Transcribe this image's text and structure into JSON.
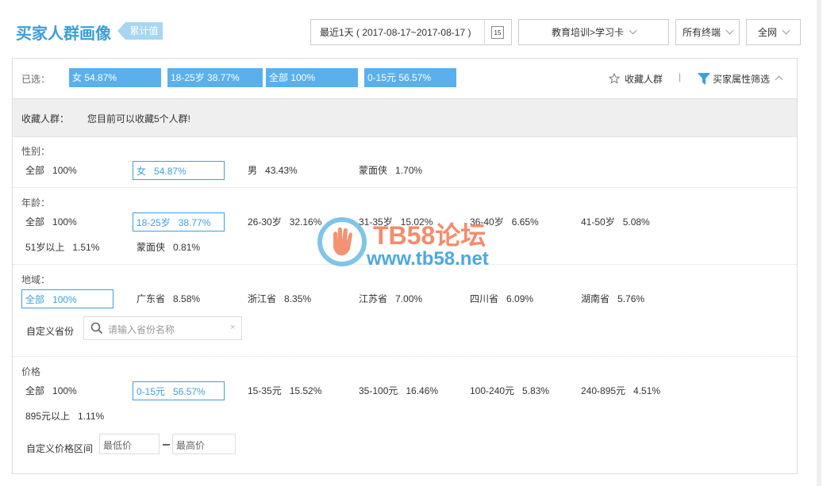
{
  "header": {
    "title": "买家人群画像",
    "badge": "累计值",
    "date_range": "最近1天 ( 2017-08-17~2017-08-17 )",
    "date_icon": "15",
    "category": "教育培训>学习卡",
    "terminal": "所有终端",
    "network": "全网"
  },
  "selected": {
    "label": "已选：",
    "tags": [
      "女 54.87%",
      "18-25岁 38.77%",
      "全部 100%",
      "0-15元 56.57%"
    ],
    "favorite": "收藏人群",
    "filter": "买家属性筛选"
  },
  "saved": {
    "label": "收藏人群：",
    "note": "您目前可以收藏5个人群!"
  },
  "sections": [
    {
      "title": "性别：",
      "options": [
        {
          "name": "全部",
          "value": "100%"
        },
        {
          "name": "女",
          "value": "54.87%",
          "selected": true
        },
        {
          "name": "男",
          "value": "43.43%"
        },
        {
          "name": "蒙面侠",
          "value": "1.70%"
        }
      ]
    },
    {
      "title": "年龄：",
      "options": [
        {
          "name": "全部",
          "value": "100%"
        },
        {
          "name": "18-25岁",
          "value": "38.77%",
          "selected": true
        },
        {
          "name": "26-30岁",
          "value": "32.16%"
        },
        {
          "name": "31-35岁",
          "value": "15.02%"
        },
        {
          "name": "36-40岁",
          "value": "6.65%"
        },
        {
          "name": "41-50岁",
          "value": "5.08%"
        },
        {
          "name": "51岁以上",
          "value": "1.51%"
        },
        {
          "name": "蒙面侠",
          "value": "0.81%"
        }
      ]
    },
    {
      "title": "地域：",
      "options": [
        {
          "name": "全部",
          "value": "100%",
          "selected": true
        },
        {
          "name": "广东省",
          "value": "8.58%"
        },
        {
          "name": "浙江省",
          "value": "8.35%"
        },
        {
          "name": "江苏省",
          "value": "7.00%"
        },
        {
          "name": "四川省",
          "value": "6.09%"
        },
        {
          "name": "湖南省",
          "value": "5.76%"
        }
      ],
      "custom": {
        "label": "自定义省份",
        "placeholder": "请输入省份名称"
      }
    },
    {
      "title": "价格",
      "options": [
        {
          "name": "全部",
          "value": "100%"
        },
        {
          "name": "0-15元",
          "value": "56.57%",
          "selected": true
        },
        {
          "name": "15-35元",
          "value": "15.52%"
        },
        {
          "name": "35-100元",
          "value": "16.46%"
        },
        {
          "name": "100-240元",
          "value": "5.83%"
        },
        {
          "name": "240-895元",
          "value": "4.51%"
        },
        {
          "name": "895元以上",
          "value": "1.11%"
        }
      ],
      "custom": {
        "label": "自定义价格区间",
        "min_placeholder": "最低价",
        "max_placeholder": "最高价"
      }
    }
  ],
  "watermark": {
    "brand": "TB58论坛",
    "url": "www.tb58.net"
  }
}
